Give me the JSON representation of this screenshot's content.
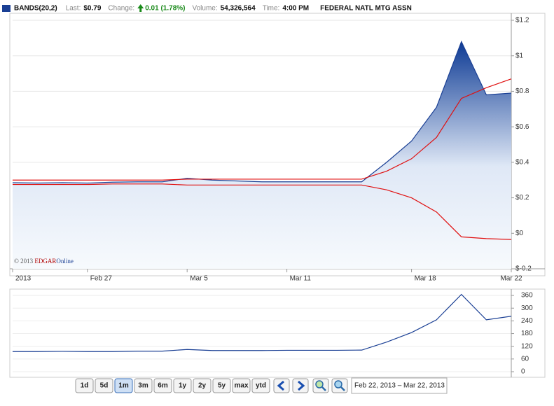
{
  "header": {
    "legend": "BANDS(20,2)",
    "legend_color": "#1a3f94",
    "fields": [
      {
        "label": "Last:",
        "value": "$0.79"
      },
      {
        "label": "Change:",
        "value": "0.01 (1.78%)",
        "color": "#1a8a1a"
      },
      {
        "label": "Volume:",
        "value": "54,326,564"
      },
      {
        "label": "Time:",
        "value": "4:00 PM"
      }
    ],
    "company": "FEDERAL NATL MTG ASSN"
  },
  "copyright": {
    "symbol": "© 2013",
    "brand": "EDGAR",
    "suffix": "Online"
  },
  "chart_data": [
    {
      "type": "area",
      "categories": [
        "2013",
        null,
        null,
        "Feb 27",
        null,
        null,
        null,
        "Mar 5",
        null,
        null,
        null,
        "Mar 11",
        null,
        null,
        null,
        null,
        "Mar 18",
        null,
        null,
        null,
        "Mar 22"
      ],
      "series": [
        {
          "kind": "area",
          "color": "#1a3f94",
          "values": [
            0.285,
            0.283,
            0.285,
            0.283,
            0.288,
            0.29,
            0.29,
            0.31,
            0.3,
            0.295,
            0.29,
            0.29,
            0.29,
            0.29,
            0.29,
            0.4,
            0.52,
            0.71,
            1.08,
            0.78,
            0.79
          ]
        },
        {
          "kind": "line",
          "color": "#e01010",
          "values": [
            0.3,
            0.3,
            0.3,
            0.3,
            0.3,
            0.3,
            0.3,
            0.305,
            0.305,
            0.305,
            0.305,
            0.305,
            0.305,
            0.305,
            0.305,
            0.35,
            0.42,
            0.54,
            0.76,
            0.82,
            0.87
          ]
        },
        {
          "kind": "line",
          "color": "#e01010",
          "values": [
            0.275,
            0.275,
            0.275,
            0.275,
            0.278,
            0.278,
            0.278,
            0.272,
            0.272,
            0.272,
            0.272,
            0.272,
            0.272,
            0.272,
            0.272,
            0.245,
            0.2,
            0.12,
            -0.02,
            -0.03,
            -0.035
          ]
        }
      ],
      "ylim": [
        -0.2,
        1.2
      ],
      "yticks": [
        {
          "value": -0.2,
          "label": "$-0.2"
        },
        {
          "value": 0,
          "label": "$0"
        },
        {
          "value": 0.2,
          "label": "$0.2"
        },
        {
          "value": 0.4,
          "label": "$0.4"
        },
        {
          "value": 0.6,
          "label": "$0.6"
        },
        {
          "value": 0.8,
          "label": "$0.8"
        },
        {
          "value": 1,
          "label": "$1"
        },
        {
          "value": 1.2,
          "label": "$1.2"
        }
      ],
      "grid": true
    },
    {
      "type": "line",
      "color": "#1a3f94",
      "values": [
        95,
        95,
        96,
        95,
        95,
        97,
        97,
        105,
        100,
        100,
        100,
        101,
        101,
        101,
        102,
        140,
        185,
        245,
        365,
        245,
        262
      ],
      "ylim": [
        0,
        390
      ],
      "yticks": [
        0,
        60,
        120,
        180,
        240,
        300,
        360
      ],
      "grid": true
    }
  ],
  "toolbar": {
    "ranges": [
      "1d",
      "5d",
      "1m",
      "3m",
      "6m",
      "1y",
      "2y",
      "5y",
      "max",
      "ytd"
    ],
    "selected": "1m",
    "date_range": "Feb 22, 2013 – Mar 22, 2013"
  }
}
